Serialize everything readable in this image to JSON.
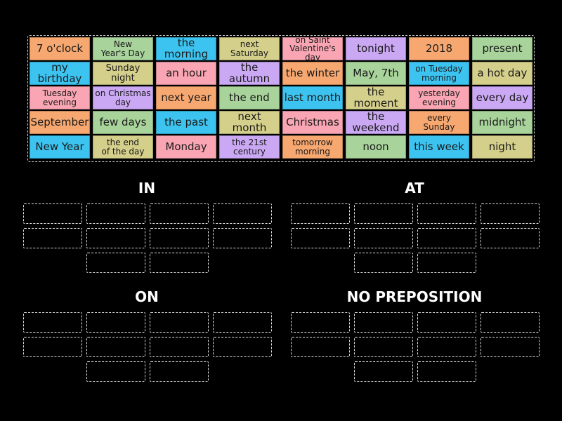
{
  "colors": {
    "orange": "#f7a870",
    "green": "#a8d39b",
    "blue": "#3cc3f0",
    "olive": "#d4cf8a",
    "pink": "#f9a5b3",
    "purple": "#cba8f4",
    "background": "#000000"
  },
  "tiles": [
    [
      "7 o'clock",
      "New\nYear's Day",
      "the morning",
      "next\nSaturday",
      "on Saint\nValentine's day",
      "tonight",
      "2018",
      "present"
    ],
    [
      "my birthday",
      "Sunday night",
      "an hour",
      "the autumn",
      "the winter",
      "May, 7th",
      "on Tuesday\nmorning",
      "a hot day"
    ],
    [
      "Tuesday\nevening",
      "on Christmas\nday",
      "next year",
      "the end",
      "last month",
      "the moment",
      "yesterday\nevening",
      "every day"
    ],
    [
      "September",
      "few days",
      "the past",
      "next month",
      "Christmas",
      "the weekend",
      "every\nSunday",
      "midnight"
    ],
    [
      "New Year",
      "the end\nof the day",
      "Monday",
      "the 21st\ncentury",
      "tomorrow\nmorning",
      "noon",
      "this week",
      "night"
    ]
  ],
  "tile_colors": [
    [
      "orange",
      "green",
      "blue",
      "olive",
      "pink",
      "purple",
      "orange",
      "green"
    ],
    [
      "blue",
      "olive",
      "pink",
      "purple",
      "orange",
      "green",
      "blue",
      "olive"
    ],
    [
      "pink",
      "purple",
      "orange",
      "green",
      "blue",
      "olive",
      "pink",
      "purple"
    ],
    [
      "orange",
      "green",
      "blue",
      "olive",
      "pink",
      "purple",
      "orange",
      "green"
    ],
    [
      "blue",
      "olive",
      "pink",
      "purple",
      "orange",
      "green",
      "blue",
      "olive"
    ]
  ],
  "groups": [
    {
      "title": "IN"
    },
    {
      "title": "AT"
    },
    {
      "title": "ON"
    },
    {
      "title": "NO PREPOSITION"
    }
  ]
}
